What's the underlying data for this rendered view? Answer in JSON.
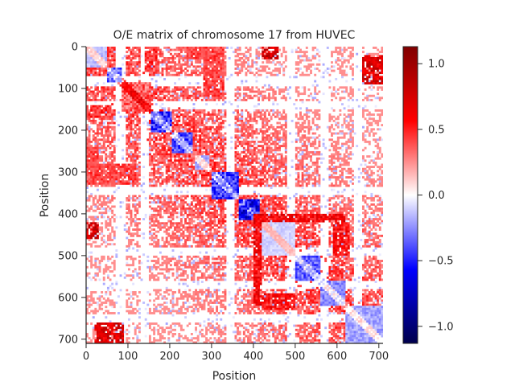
{
  "chart_data": {
    "type": "heatmap",
    "title": "O/E matrix of chromosome 17 from HUVEC",
    "xlabel": "Position",
    "ylabel": "Position",
    "x_ticks": [
      "0",
      "100",
      "200",
      "300",
      "400",
      "500",
      "600",
      "700"
    ],
    "y_ticks": [
      "0",
      "100",
      "200",
      "300",
      "400",
      "500",
      "600",
      "700"
    ],
    "xlim": [
      0,
      710
    ],
    "ylim": [
      710,
      0
    ],
    "colormap": "seismic",
    "colorbar": {
      "range": [
        -1.13,
        1.13
      ],
      "ticks": [
        "1.0",
        "0.5",
        "0.0",
        "−0.5",
        "−1.0"
      ],
      "tick_values": [
        1.0,
        0.5,
        0.0,
        -0.5,
        -1.0
      ]
    },
    "domains": [
      {
        "start": 0,
        "end": 50,
        "value": -0.15
      },
      {
        "start": 20,
        "end": 85,
        "value": -0.35
      },
      {
        "start": 85,
        "end": 155,
        "value": 0.35
      },
      {
        "start": 150,
        "end": 205,
        "value": -0.45
      },
      {
        "start": 205,
        "end": 255,
        "value": -0.4
      },
      {
        "start": 260,
        "end": 295,
        "value": -0.2
      },
      {
        "start": 300,
        "end": 365,
        "value": -0.45
      },
      {
        "start": 365,
        "end": 415,
        "value": -0.6
      },
      {
        "start": 415,
        "end": 500,
        "value": -0.1
      },
      {
        "start": 500,
        "end": 560,
        "value": -0.35
      },
      {
        "start": 560,
        "end": 620,
        "value": -0.25
      },
      {
        "start": 620,
        "end": 710,
        "value": -0.2
      }
    ],
    "strong_contacts": [
      {
        "row_range": [
          400,
          420
        ],
        "col_range": [
          400,
          620
        ],
        "value": 0.7
      },
      {
        "row_range": [
          400,
          610
        ],
        "col_range": [
          400,
          420
        ],
        "value": 0.65
      },
      {
        "row_range": [
          590,
          630
        ],
        "col_range": [
          420,
          500
        ],
        "value": 0.6
      },
      {
        "row_range": [
          0,
          30
        ],
        "col_range": [
          240,
          330
        ],
        "value": 0.45
      },
      {
        "row_range": [
          0,
          30
        ],
        "col_range": [
          420,
          460
        ],
        "value": 0.8
      },
      {
        "row_range": [
          660,
          710
        ],
        "col_range": [
          20,
          90
        ],
        "value": 0.75
      },
      {
        "row_range": [
          140,
          170
        ],
        "col_range": [
          0,
          60
        ],
        "value": 0.5
      },
      {
        "row_range": [
          280,
          330
        ],
        "col_range": [
          0,
          120
        ],
        "value": 0.45
      }
    ]
  }
}
